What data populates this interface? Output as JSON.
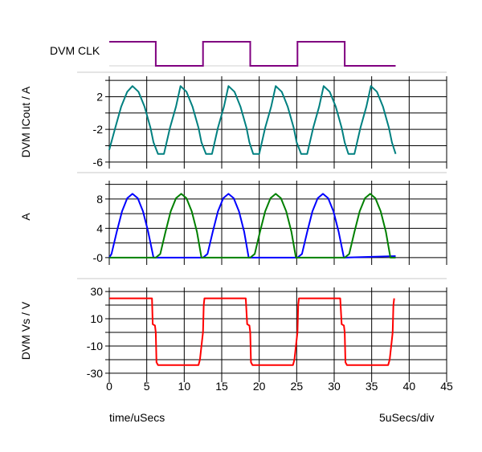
{
  "footer": {
    "xlabel": "time/uSecs",
    "scale": "5uSecs/div"
  },
  "chart_data": [
    {
      "type": "line",
      "name": "DVM CLK",
      "ylabel": "DVM CLK",
      "digital": true,
      "xlim": [
        0,
        45
      ],
      "series": [
        {
          "name": "DVM CLK",
          "color": "#800080",
          "x": [
            0,
            6.2,
            6.2,
            12.5,
            12.5,
            18.8,
            18.8,
            25.1,
            25.1,
            31.4,
            31.4,
            38.2
          ],
          "y": [
            1,
            1,
            0,
            0,
            1,
            1,
            0,
            0,
            1,
            1,
            0,
            0
          ]
        }
      ]
    },
    {
      "type": "line",
      "name": "DVM ICout",
      "ylabel": "DVM ICout / A",
      "xlim": [
        0,
        45
      ],
      "ylim": [
        -6.8,
        4.5
      ],
      "yticks": [
        -6,
        -4,
        -2,
        0,
        2,
        4
      ],
      "ytick_labels": [
        "-6",
        "",
        "-2",
        "",
        "2",
        ""
      ],
      "series": [
        {
          "name": "DVM ICout",
          "color": "#008080",
          "x": [
            0,
            0.8,
            1.6,
            2.4,
            3.1,
            3.9,
            4.7,
            5.5,
            5.9,
            6.5,
            7.3,
            8.1,
            8.9,
            9.5,
            10.3,
            11.1,
            11.9,
            12.3,
            12.9,
            13.7,
            14.5,
            15.3,
            15.9,
            16.7,
            17.5,
            18.3,
            18.7,
            19.2,
            20.0,
            20.8,
            21.6,
            22.2,
            23.0,
            23.8,
            24.6,
            25.0,
            25.6,
            26.4,
            27.2,
            28.0,
            28.6,
            29.4,
            30.2,
            31.0,
            31.4,
            31.9,
            32.7,
            33.5,
            34.3,
            34.9,
            35.7,
            36.5,
            37.3,
            37.7,
            38.2
          ],
          "y": [
            -4.5,
            -1.8,
            0.8,
            2.6,
            3.3,
            2.6,
            0.8,
            -1.8,
            -3.6,
            -5.0,
            -5.0,
            -1.8,
            0.8,
            3.3,
            2.6,
            0.8,
            -1.8,
            -3.6,
            -5.0,
            -5.0,
            -1.8,
            0.8,
            3.3,
            2.6,
            0.8,
            -1.8,
            -3.6,
            -5.0,
            -5.0,
            -1.8,
            0.8,
            3.3,
            2.6,
            0.8,
            -1.8,
            -3.6,
            -5.0,
            -5.0,
            -1.8,
            0.8,
            3.3,
            2.6,
            0.8,
            -1.8,
            -3.6,
            -5.0,
            -5.0,
            -1.8,
            0.8,
            3.3,
            2.6,
            0.8,
            -1.8,
            -3.6,
            -5.0
          ]
        }
      ]
    },
    {
      "type": "line",
      "name": "A",
      "ylabel": "A",
      "xlim": [
        0,
        45
      ],
      "ylim": [
        -1.0,
        10.5
      ],
      "yticks": [
        0,
        2,
        4,
        6,
        8,
        10
      ],
      "ytick_labels": [
        "-0",
        "",
        "4",
        "",
        "8",
        ""
      ],
      "series": [
        {
          "name": "A (blue)",
          "color": "#0000ff",
          "x": [
            0,
            0.3,
            1.0,
            1.7,
            2.4,
            3.1,
            3.8,
            4.5,
            5.2,
            5.9,
            12.5,
            13.1,
            13.8,
            14.5,
            15.2,
            15.9,
            16.6,
            17.3,
            18.0,
            18.6,
            25.1,
            25.7,
            26.4,
            27.1,
            27.8,
            28.5,
            29.2,
            29.9,
            30.6,
            31.3,
            38.2
          ],
          "y": [
            0,
            0.5,
            3.5,
            6.3,
            8.1,
            8.7,
            8.1,
            6.3,
            3.5,
            0,
            0,
            0.5,
            3.5,
            6.3,
            8.1,
            8.7,
            8.1,
            6.3,
            3.5,
            0,
            0,
            0.5,
            3.5,
            6.3,
            8.1,
            8.7,
            8.1,
            6.3,
            3.5,
            0,
            0.2
          ]
        },
        {
          "name": "A (green)",
          "color": "#008000",
          "x": [
            0,
            6.2,
            6.8,
            7.5,
            8.2,
            8.9,
            9.6,
            10.3,
            11.0,
            11.7,
            12.3,
            18.8,
            19.4,
            20.1,
            20.8,
            21.5,
            22.2,
            22.9,
            23.6,
            24.3,
            24.9,
            31.4,
            32.0,
            32.7,
            33.4,
            34.1,
            34.8,
            35.5,
            36.2,
            36.9,
            37.5,
            38.2
          ],
          "y": [
            0,
            0,
            0.5,
            3.5,
            6.3,
            8.1,
            8.7,
            8.1,
            6.3,
            3.5,
            0,
            0,
            0.5,
            3.5,
            6.3,
            8.1,
            8.7,
            8.1,
            6.3,
            3.5,
            0,
            0,
            0.5,
            3.5,
            6.3,
            8.1,
            8.7,
            8.1,
            6.3,
            3.5,
            0,
            0
          ]
        }
      ]
    },
    {
      "type": "line",
      "name": "DVM Vs",
      "ylabel": "DVM Vs / V",
      "xlim": [
        0,
        45
      ],
      "ylim": [
        -33,
        33
      ],
      "yticks": [
        -30,
        -20,
        -10,
        0,
        10,
        20,
        30
      ],
      "ytick_labels": [
        "-30",
        "",
        "-10",
        "",
        "10",
        "",
        "30"
      ],
      "xticks": [
        0,
        5,
        10,
        15,
        20,
        25,
        30,
        35,
        40,
        45
      ],
      "xtick_labels": [
        "0",
        "5",
        "10",
        "15",
        "20",
        "25",
        "30",
        "35",
        "40",
        "45"
      ],
      "series": [
        {
          "name": "DVM Vs",
          "color": "#ff0000",
          "x": [
            0,
            5.7,
            5.8,
            6.1,
            6.2,
            6.3,
            6.5,
            11.9,
            12.1,
            12.4,
            12.5,
            12.6,
            12.7,
            18.2,
            18.4,
            18.7,
            18.8,
            18.9,
            19.1,
            24.5,
            24.7,
            25.0,
            25.1,
            25.2,
            25.3,
            30.8,
            31.0,
            31.3,
            31.4,
            31.5,
            31.7,
            37.2,
            37.4,
            37.7,
            37.8,
            37.9,
            38.0
          ],
          "y": [
            25,
            25,
            6,
            5,
            0,
            -22,
            -24,
            -24,
            -20,
            -5,
            0,
            20,
            25,
            25,
            6,
            5,
            0,
            -22,
            -24,
            -24,
            -20,
            -5,
            0,
            20,
            25,
            25,
            6,
            5,
            0,
            -22,
            -24,
            -24,
            -20,
            -5,
            0,
            20,
            25
          ]
        }
      ]
    }
  ]
}
